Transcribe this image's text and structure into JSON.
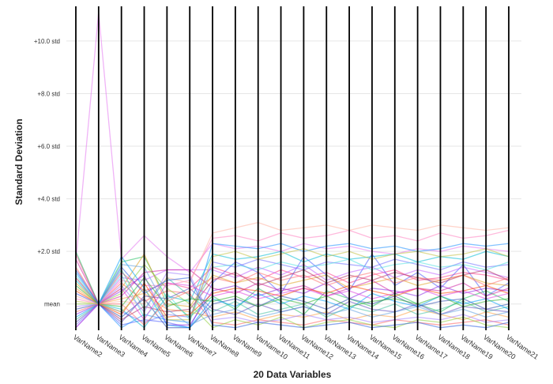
{
  "chart_data": {
    "type": "line",
    "subtype": "parallel-coordinates",
    "title": "",
    "xlabel": "20 Data Variables",
    "ylabel": "Standard Deviation",
    "categories": [
      "VarName2",
      "VarName3",
      "VarName4",
      "VarName5",
      "VarName6",
      "VarName7",
      "VarName8",
      "VarName9",
      "VarName10",
      "VarName11",
      "VarName12",
      "VarName13",
      "VarName14",
      "VarName15",
      "VarName16",
      "VarName17",
      "VarName18",
      "VarName19",
      "VarName20",
      "VarName21"
    ],
    "y_ticks": [
      {
        "value": 0,
        "label": "mean"
      },
      {
        "value": 2,
        "label": "+2.0 std"
      },
      {
        "value": 4,
        "label": "+4.0 std"
      },
      {
        "value": 6,
        "label": "+6.0 std"
      },
      {
        "value": 8,
        "label": "+8.0 std"
      },
      {
        "value": 10,
        "label": "+10.0 std"
      }
    ],
    "ylim": [
      -1.0,
      11.2
    ],
    "grid": true,
    "legend": "none",
    "series": [
      {
        "color": "#e377f0",
        "values": [
          1.6,
          11.1,
          1.7,
          2.6,
          1.8,
          1.2,
          2.3,
          2.1,
          2.2,
          2.0,
          2.3,
          2.1,
          2.2,
          2.0,
          1.9,
          2.1,
          2.0,
          2.2,
          2.1,
          2.0
        ]
      },
      {
        "color": "#ff3b8b",
        "values": [
          1.9,
          0.0,
          1.2,
          0.5,
          0.8,
          0.6,
          1.4,
          1.1,
          0.9,
          1.3,
          1.0,
          1.2,
          0.8,
          1.1,
          1.3,
          0.9,
          1.0,
          1.2,
          1.1,
          0.9
        ]
      },
      {
        "color": "#4a5dff",
        "values": [
          -0.9,
          0.0,
          -0.8,
          -0.6,
          -0.7,
          -0.9,
          0.8,
          1.6,
          1.2,
          0.4,
          1.8,
          1.1,
          0.5,
          1.9,
          0.7,
          1.2,
          0.6,
          1.5,
          0.3,
          0.8
        ]
      },
      {
        "color": "#20c060",
        "values": [
          2.0,
          0.0,
          1.6,
          1.8,
          0.2,
          -0.5,
          0.3,
          -0.2,
          0.6,
          0.1,
          -0.4,
          0.5,
          0.2,
          -0.1,
          0.4,
          0.0,
          -0.3,
          0.2,
          0.5,
          0.1
        ]
      },
      {
        "color": "#1e90ff",
        "values": [
          1.2,
          0.0,
          -0.9,
          -0.4,
          -0.6,
          -0.7,
          2.3,
          2.2,
          2.1,
          2.3,
          2.0,
          2.2,
          2.3,
          2.1,
          2.2,
          2.0,
          2.1,
          2.3,
          2.2,
          2.3
        ]
      },
      {
        "color": "#c060ff",
        "values": [
          0.4,
          0.0,
          1.0,
          0.9,
          1.3,
          1.3,
          1.3,
          1.0,
          1.4,
          1.1,
          1.5,
          0.9,
          1.2,
          1.4,
          1.0,
          1.3,
          1.1,
          1.4,
          1.2,
          1.0
        ]
      },
      {
        "color": "#ff9f40",
        "values": [
          0.6,
          0.0,
          0.2,
          0.4,
          -0.2,
          -0.3,
          -0.5,
          -0.3,
          -0.6,
          -0.4,
          -0.5,
          -0.3,
          -0.6,
          -0.4,
          -0.5,
          -0.2,
          -0.4,
          -0.6,
          -0.3,
          -0.5
        ]
      },
      {
        "color": "#8a2be2",
        "values": [
          -0.4,
          0.0,
          0.5,
          1.1,
          -0.8,
          -0.8,
          0.5,
          0.7,
          0.3,
          0.6,
          0.4,
          0.8,
          0.2,
          0.6,
          0.5,
          0.3,
          0.7,
          0.4,
          0.6,
          0.5
        ]
      },
      {
        "color": "#00bcd4",
        "values": [
          0.9,
          0.0,
          -0.2,
          -0.9,
          0.3,
          0.1,
          1.9,
          1.7,
          1.8,
          2.0,
          1.6,
          1.9,
          1.7,
          1.8,
          1.9,
          1.6,
          1.8,
          1.7,
          2.0,
          1.8
        ]
      },
      {
        "color": "#ff6060",
        "values": [
          1.4,
          0.0,
          0.8,
          0.1,
          0.5,
          0.4,
          -0.7,
          -0.8,
          -0.6,
          -0.7,
          -0.8,
          -0.6,
          -0.7,
          -0.8,
          -0.6,
          -0.7,
          -0.8,
          -0.7,
          -0.6,
          -0.8
        ]
      },
      {
        "color": "#2f4fb0",
        "values": [
          -0.2,
          0.0,
          -0.5,
          0.2,
          -0.9,
          -0.9,
          0.0,
          0.2,
          -0.1,
          0.3,
          0.1,
          -0.2,
          0.2,
          0.0,
          0.3,
          -0.1,
          0.1,
          0.2,
          -0.2,
          0.0
        ]
      },
      {
        "color": "#e0a020",
        "values": [
          0.8,
          0.0,
          0.6,
          1.9,
          0.0,
          -0.1,
          1.1,
          0.8,
          1.0,
          0.7,
          0.9,
          1.1,
          0.6,
          0.8,
          1.0,
          0.7,
          0.9,
          1.1,
          0.8,
          0.7
        ]
      },
      {
        "color": "#ff80c0",
        "values": [
          0.2,
          0.0,
          0.9,
          0.7,
          0.7,
          0.9,
          2.5,
          2.6,
          2.4,
          2.7,
          2.5,
          2.6,
          2.8,
          2.5,
          2.6,
          2.4,
          2.7,
          2.5,
          2.6,
          2.8
        ]
      },
      {
        "color": "#40c0a0",
        "values": [
          -0.6,
          0.0,
          1.3,
          -0.2,
          1.0,
          0.3,
          -0.3,
          0.1,
          -0.4,
          -0.2,
          0.0,
          -0.5,
          -0.1,
          -0.3,
          0.0,
          -0.4,
          -0.2,
          0.1,
          -0.3,
          -0.1
        ]
      },
      {
        "color": "#d020a0",
        "values": [
          1.7,
          0.0,
          0.3,
          1.2,
          1.3,
          1.3,
          0.6,
          0.4,
          0.8,
          0.5,
          0.7,
          0.3,
          0.6,
          0.9,
          0.4,
          0.6,
          0.5,
          0.8,
          0.3,
          0.6
        ]
      },
      {
        "color": "#7070ff",
        "values": [
          -0.8,
          0.0,
          -0.3,
          -0.7,
          -0.4,
          -0.5,
          1.6,
          1.4,
          1.7,
          1.5,
          1.3,
          1.6,
          1.5,
          1.4,
          1.7,
          1.5,
          1.3,
          1.6,
          1.4,
          1.5
        ]
      },
      {
        "color": "#90d040",
        "values": [
          0.0,
          0.0,
          0.4,
          1.5,
          0.6,
          0.0,
          -0.9,
          -0.6,
          -0.8,
          -0.5,
          -0.9,
          -0.7,
          -0.6,
          -0.8,
          -0.9,
          -0.6,
          -0.7,
          -0.5,
          -0.8,
          -0.9
        ]
      },
      {
        "color": "#b03060",
        "values": [
          1.0,
          0.0,
          -0.6,
          -0.1,
          -0.3,
          -0.2,
          0.9,
          1.2,
          0.7,
          1.0,
          1.3,
          0.8,
          1.1,
          0.9,
          1.2,
          1.0,
          0.8,
          1.1,
          1.3,
          0.9
        ]
      },
      {
        "color": "#00a0ff",
        "values": [
          -0.5,
          0.0,
          1.8,
          0.6,
          -0.8,
          -0.9,
          0.2,
          -0.1,
          0.4,
          0.0,
          0.3,
          0.1,
          -0.2,
          0.4,
          0.1,
          -0.1,
          0.3,
          0.0,
          0.2,
          -0.2
        ]
      },
      {
        "color": "#ffb0a0",
        "values": [
          0.3,
          0.0,
          0.1,
          0.0,
          1.0,
          0.8,
          2.7,
          2.9,
          3.1,
          2.8,
          2.9,
          3.0,
          2.8,
          3.0,
          2.9,
          2.8,
          3.0,
          2.9,
          2.8,
          2.9
        ]
      },
      {
        "color": "#6050c0",
        "values": [
          -0.7,
          0.0,
          -0.7,
          0.3,
          0.2,
          0.6,
          -0.2,
          -0.4,
          0.0,
          -0.3,
          -0.1,
          -0.4,
          0.1,
          -0.2,
          -0.3,
          0.0,
          -0.4,
          -0.1,
          -0.2,
          -0.3
        ]
      },
      {
        "color": "#50e0e0",
        "values": [
          1.1,
          0.0,
          1.1,
          -0.5,
          0.4,
          -0.6,
          1.4,
          1.5,
          1.3,
          1.6,
          1.4,
          1.5,
          1.7,
          1.3,
          1.5,
          1.6,
          1.4,
          1.5,
          1.3,
          1.6
        ]
      },
      {
        "color": "#ff4500",
        "values": [
          0.5,
          0.0,
          -0.4,
          0.8,
          -0.5,
          -0.4,
          0.4,
          0.6,
          0.5,
          0.3,
          0.6,
          0.4,
          0.7,
          0.5,
          0.3,
          0.6,
          0.4,
          0.5,
          0.7,
          0.4
        ]
      },
      {
        "color": "#a080ff",
        "values": [
          -0.1,
          0.0,
          0.7,
          -0.3,
          1.2,
          1.1,
          -0.6,
          -0.5,
          -0.7,
          -0.6,
          -0.4,
          -0.6,
          -0.5,
          -0.7,
          -0.6,
          -0.5,
          -0.6,
          -0.4,
          -0.7,
          -0.6
        ]
      },
      {
        "color": "#30b030",
        "values": [
          0.7,
          0.0,
          -0.1,
          1.0,
          -0.1,
          0.2,
          0.1,
          0.3,
          -0.1,
          0.2,
          0.0,
          0.3,
          -0.1,
          0.1,
          0.2,
          0.0,
          0.3,
          -0.1,
          0.1,
          0.2
        ]
      },
      {
        "color": "#ff7070",
        "values": [
          -0.3,
          0.0,
          0.0,
          -0.8,
          0.1,
          0.5,
          1.0,
          0.8,
          1.2,
          0.9,
          1.1,
          0.7,
          1.0,
          1.2,
          0.8,
          1.0,
          0.9,
          1.1,
          0.7,
          1.0
        ]
      },
      {
        "color": "#3060e0",
        "values": [
          1.3,
          0.0,
          1.4,
          0.4,
          0.9,
          1.0,
          -0.8,
          -0.9,
          -0.7,
          -0.8,
          -0.9,
          -0.8,
          -0.7,
          -0.9,
          -0.8,
          -0.7,
          -0.9,
          -0.8,
          -0.9,
          -0.7
        ]
      },
      {
        "color": "#c0c040",
        "values": [
          0.1,
          0.0,
          -0.3,
          0.6,
          -0.6,
          -0.6,
          1.8,
          2.0,
          1.7,
          1.9,
          2.1,
          1.8,
          2.0,
          1.7,
          1.9,
          2.0,
          1.8,
          1.9,
          2.1,
          1.8
        ]
      },
      {
        "color": "#e040e0",
        "values": [
          -0.9,
          0.0,
          0.6,
          -0.6,
          0.8,
          0.7,
          0.3,
          0.5,
          0.2,
          0.4,
          0.6,
          0.3,
          0.5,
          0.2,
          0.4,
          0.6,
          0.3,
          0.5,
          0.2,
          0.4
        ]
      },
      {
        "color": "#60a0e0",
        "values": [
          0.4,
          0.0,
          1.5,
          1.4,
          -0.2,
          -0.8,
          -0.4,
          -0.2,
          -0.5,
          -0.3,
          -0.1,
          -0.4,
          -0.2,
          -0.5,
          -0.3,
          -0.1,
          -0.4,
          -0.2,
          -0.5,
          -0.3
        ]
      }
    ]
  }
}
